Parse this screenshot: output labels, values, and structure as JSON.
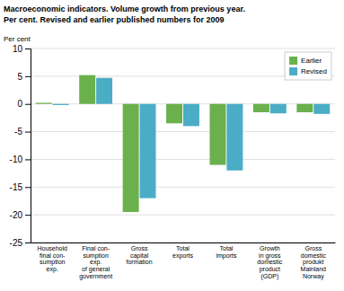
{
  "chart_data": {
    "type": "bar",
    "title": "Macroeconomic indicators. Volume growth from previous year.",
    "subtitle": "Per cent. Revised and earlier published numbers for 2009",
    "ylabel": "Per cent",
    "categories": [
      "Household\nfinal con-\nsumption\nexp.",
      "Final con-\nsumption\nexp.\nof general\ngovernment",
      "Gross\ncapital\nformation",
      "Total\nexports",
      "Total\nimports",
      "Growth\nin gross\ndomestic\nproduct\n(GDP)",
      "Gross\ndomestic\nprodukt\nMainland\nNorway"
    ],
    "series": [
      {
        "name": "Earlier",
        "color": "#6ab04c",
        "values": [
          0.2,
          5.2,
          -19.5,
          -3.5,
          -11.0,
          -1.5,
          -1.5
        ]
      },
      {
        "name": "Revised",
        "color": "#4bacc6",
        "values": [
          -0.2,
          4.7,
          -17.0,
          -4.0,
          -12.0,
          -1.7,
          -1.8
        ]
      }
    ],
    "ylim": [
      -25,
      10
    ],
    "yticks": [
      -25,
      -20,
      -15,
      -10,
      -5,
      0,
      5,
      10
    ],
    "grid": true,
    "legend": "upper right"
  }
}
